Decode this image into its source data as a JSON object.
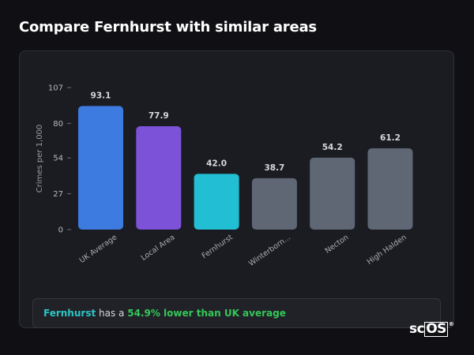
{
  "page_title": "Compare Fernhurst with similar areas",
  "summary": {
    "area": "Fernhurst",
    "connector": "has a",
    "difference": "54.9% lower than UK average"
  },
  "logo": {
    "prefix": "sc",
    "boxed": "OS",
    "mark": "®"
  },
  "colors": {
    "uk_average": "#3d7be0",
    "local_area": "#7b52d8",
    "fernhurst": "#22bfd4",
    "other": "#5f6775",
    "positive": "#34c759",
    "highlight_text": "#2ec4c4"
  },
  "chart_data": {
    "type": "bar",
    "title": "",
    "xlabel": "",
    "ylabel": "Crimes per 1,000",
    "ylim": [
      0,
      107
    ],
    "yticks": [
      0,
      27,
      54,
      80,
      107
    ],
    "grid": false,
    "categories": [
      "UK Average",
      "Local Area",
      "Fernhurst",
      "Winterborn...",
      "Necton",
      "High Halden"
    ],
    "values": [
      93.1,
      77.9,
      42.0,
      38.7,
      54.2,
      61.2
    ],
    "value_labels": [
      "93.1",
      "77.9",
      "42.0",
      "38.7",
      "54.2",
      "61.2"
    ],
    "bar_colors": [
      "#3d7be0",
      "#7b52d8",
      "#22bfd4",
      "#5f6775",
      "#5f6775",
      "#5f6775"
    ]
  }
}
